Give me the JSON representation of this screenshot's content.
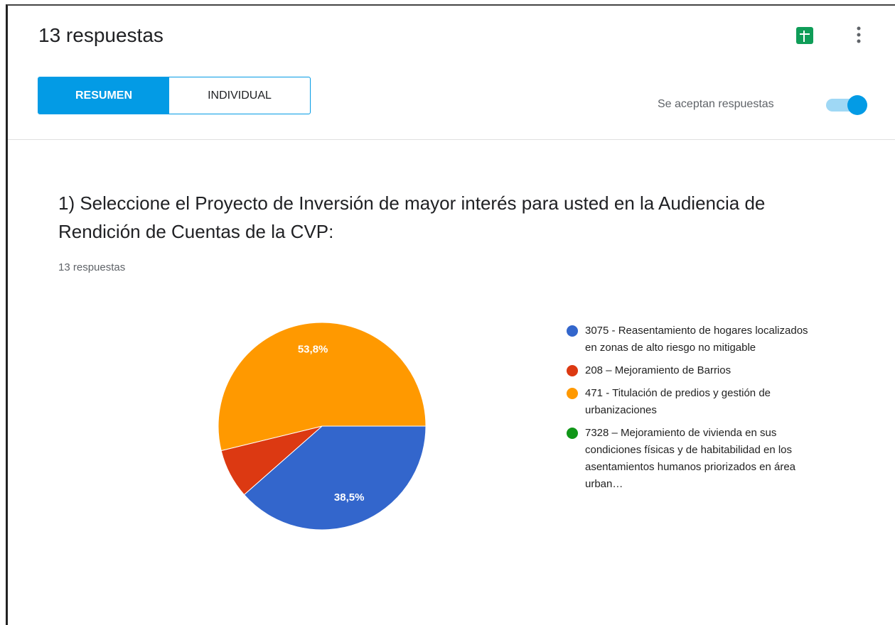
{
  "header": {
    "title": "13 respuestas",
    "tabs": [
      "RESUMEN",
      "INDIVIDUAL"
    ],
    "status": "Se aceptan respuestas"
  },
  "chart_data": {
    "type": "pie",
    "title": "1) Seleccione el Proyecto de Inversión de mayor interés para usted en la Audiencia de Rendición de Cuentas de la CVP:",
    "subtitle": "13 respuestas",
    "categories": [
      "3075 - Reasentamiento de hogares localizados en zonas de alto riesgo no mitigable",
      "208 – Mejoramiento de Barrios",
      "471 - Titulación de predios y gestión de urbanizaciones",
      "7328 – Mejoramiento de vivienda en sus condiciones físicas y de habitabilidad en los asentamientos humanos priorizados en área urban…"
    ],
    "values": [
      38.5,
      7.7,
      53.8,
      0
    ],
    "value_labels": [
      "38,5%",
      null,
      "53,8%",
      null
    ],
    "colors": [
      "#3366cc",
      "#dc3912",
      "#ff9900",
      "#109618"
    ]
  }
}
